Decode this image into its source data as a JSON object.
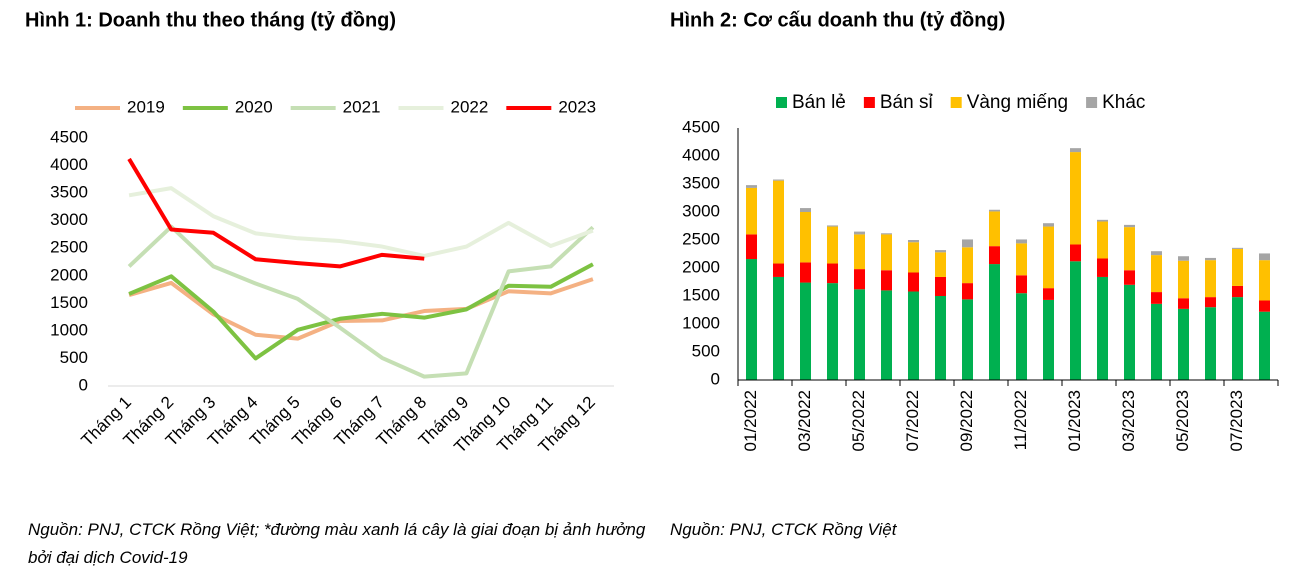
{
  "chart_data": [
    {
      "type": "line",
      "title": "Hình 1: Doanh thu theo tháng (tỷ đồng)",
      "categories": [
        "Tháng 1",
        "Tháng 2",
        "Tháng 3",
        "Tháng 4",
        "Tháng 5",
        "Tháng 6",
        "Tháng 7",
        "Tháng 8",
        "Tháng 9",
        "Tháng 10",
        "Tháng 11",
        "Tháng 12"
      ],
      "series": [
        {
          "name": "2019",
          "color": "#f4b183",
          "values": [
            1650,
            1870,
            1300,
            930,
            860,
            1180,
            1190,
            1360,
            1400,
            1720,
            1680,
            1940
          ]
        },
        {
          "name": "2020",
          "color": "#7dc242",
          "values": [
            1670,
            1990,
            1350,
            500,
            1020,
            1220,
            1310,
            1240,
            1390,
            1820,
            1800,
            2210
          ]
        },
        {
          "name": "2021",
          "color": "#c5dfb4",
          "values": [
            2170,
            2890,
            2170,
            1860,
            1580,
            1060,
            510,
            170,
            230,
            2080,
            2170,
            2880
          ]
        },
        {
          "name": "2022",
          "color": "#e6f0dc",
          "values": [
            3460,
            3590,
            3080,
            2770,
            2680,
            2630,
            2530,
            2360,
            2530,
            2960,
            2540,
            2820
          ]
        },
        {
          "name": "2023",
          "color": "#ff0000",
          "values": [
            4120,
            2840,
            2780,
            2300,
            2230,
            2170,
            2380,
            2310,
            null,
            null,
            null,
            null
          ]
        }
      ],
      "ylim": [
        0,
        4500
      ],
      "yticks": [
        0,
        500,
        1000,
        1500,
        2000,
        2500,
        3000,
        3500,
        4000,
        4500
      ],
      "source": "Nguồn: PNJ, CTCK Rồng Việt; *đường màu xanh lá cây là giai đoạn bị ảnh hưởng bởi đại dịch Covid-19"
    },
    {
      "type": "bar",
      "stacked": true,
      "title": "Hình 2: Cơ cấu doanh thu (tỷ đồng)",
      "categories": [
        "01/2022",
        null,
        "03/2022",
        null,
        "05/2022",
        null,
        "07/2022",
        null,
        "09/2022",
        null,
        "11/2022",
        null,
        "01/2023",
        null,
        "03/2023",
        null,
        "05/2023",
        null,
        "07/2023",
        null
      ],
      "series": [
        {
          "name": "Bán lẻ",
          "color": "#00b050",
          "values": [
            2160,
            1840,
            1740,
            1730,
            1620,
            1600,
            1580,
            1500,
            1440,
            2070,
            1550,
            1430,
            2120,
            1840,
            1700,
            1360,
            1270,
            1300,
            1480,
            1220
          ]
        },
        {
          "name": "Bán sỉ",
          "color": "#ff0000",
          "values": [
            440,
            240,
            360,
            350,
            360,
            360,
            340,
            340,
            290,
            320,
            320,
            210,
            300,
            330,
            260,
            210,
            190,
            180,
            200,
            200
          ]
        },
        {
          "name": "Vàng miếng",
          "color": "#ffc000",
          "values": [
            830,
            1480,
            900,
            660,
            620,
            640,
            540,
            440,
            640,
            620,
            570,
            1100,
            1650,
            660,
            770,
            660,
            670,
            660,
            660,
            720
          ]
        },
        {
          "name": "Khác",
          "color": "#a5a5a5",
          "values": [
            50,
            20,
            70,
            20,
            50,
            20,
            40,
            40,
            140,
            30,
            70,
            60,
            70,
            30,
            40,
            70,
            80,
            40,
            20,
            120
          ]
        }
      ],
      "ylim": [
        0,
        4500
      ],
      "yticks": [
        0,
        500,
        1000,
        1500,
        2000,
        2500,
        3000,
        3500,
        4000,
        4500
      ],
      "source": "Nguồn: PNJ, CTCK Rồng Việt"
    }
  ]
}
